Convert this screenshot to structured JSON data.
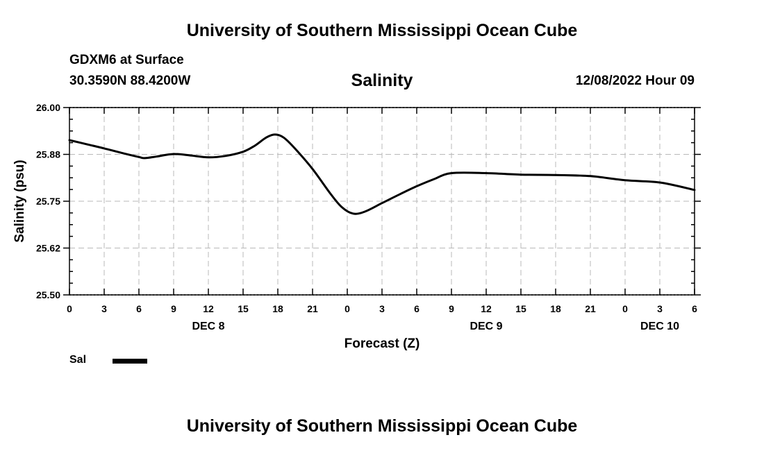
{
  "header": {
    "title": "University of Southern Mississippi Ocean Cube",
    "station": "GDXM6 at Surface",
    "coords": "30.3590N  88.4200W",
    "datetime": "12/08/2022 Hour 09"
  },
  "footer": {
    "title": "University of Southern Mississippi Ocean Cube"
  },
  "legend": {
    "label": "Sal",
    "color": "#000000"
  },
  "chart_data": {
    "type": "line",
    "title": "Salinity",
    "xlabel": "Forecast (Z)",
    "ylabel": "Salinity (psu)",
    "xlim": [
      0,
      54
    ],
    "ylim": [
      25.5,
      26.0
    ],
    "x_ticks": [
      0,
      3,
      6,
      9,
      12,
      15,
      18,
      21,
      24,
      27,
      30,
      33,
      36,
      39,
      42,
      45,
      48,
      51,
      54
    ],
    "x_tick_labels": [
      "0",
      "3",
      "6",
      "9",
      "12",
      "15",
      "18",
      "21",
      "0",
      "3",
      "6",
      "9",
      "12",
      "15",
      "18",
      "21",
      "0",
      "3",
      "6"
    ],
    "y_ticks": [
      25.5,
      25.625,
      25.75,
      25.875,
      26.0
    ],
    "y_tick_labels": [
      "25.50",
      "25.62",
      "25.75",
      "25.88",
      "26.00"
    ],
    "day_labels": [
      {
        "x": 12,
        "text": "DEC 8"
      },
      {
        "x": 36,
        "text": "DEC 9"
      },
      {
        "x": 51,
        "text": "DEC 10"
      }
    ],
    "grid": true,
    "series": [
      {
        "name": "Sal",
        "x": [
          0,
          1.5,
          3,
          4.5,
          6,
          6.5,
          7.5,
          9,
          10.5,
          12,
          13.5,
          15,
          16,
          17,
          17.75,
          18.5,
          19.5,
          21,
          22.5,
          23.5,
          24.5,
          25.5,
          27,
          28.5,
          30,
          31.5,
          33,
          36,
          39,
          42,
          45,
          48,
          51,
          54
        ],
        "y": [
          25.913,
          25.902,
          25.891,
          25.879,
          25.868,
          25.865,
          25.869,
          25.876,
          25.872,
          25.867,
          25.871,
          25.882,
          25.898,
          25.92,
          25.928,
          25.92,
          25.89,
          25.836,
          25.772,
          25.735,
          25.717,
          25.722,
          25.745,
          25.768,
          25.79,
          25.809,
          25.825,
          25.825,
          25.821,
          25.82,
          25.817,
          25.806,
          25.8,
          25.78
        ]
      }
    ]
  }
}
